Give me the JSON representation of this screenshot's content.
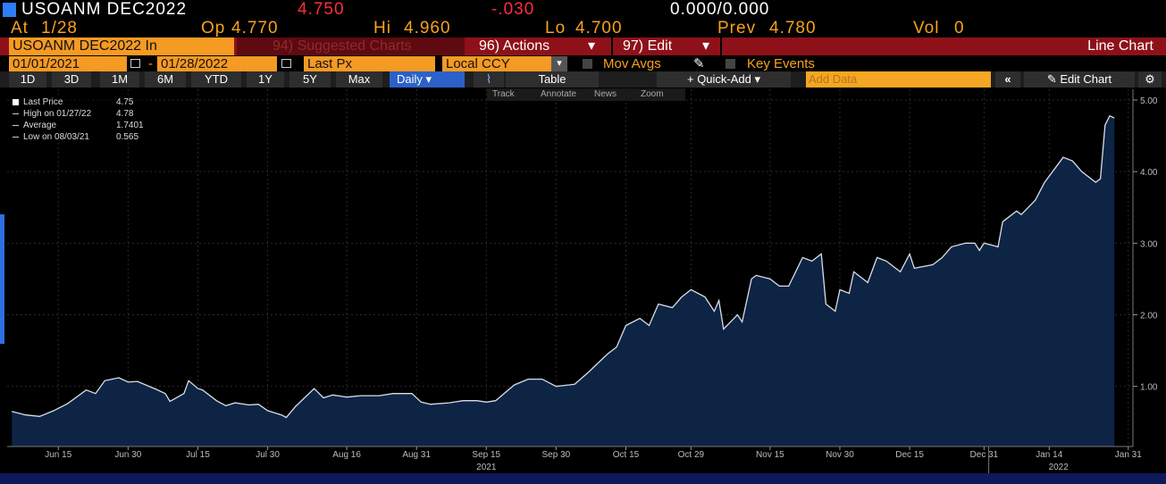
{
  "header": {
    "security": "USOANM DEC2022",
    "last": "4.750",
    "change": "-.030",
    "bid_ask": "0.000/0.000",
    "quote": [
      {
        "label": "At",
        "value": "1/28"
      },
      {
        "label": "Op",
        "value": "4.770"
      },
      {
        "label": "Hi",
        "value": "4.960"
      },
      {
        "label": "Lo",
        "value": "4.700"
      },
      {
        "label": "Prev",
        "value": "4.780"
      },
      {
        "label": "Vol",
        "value": "0"
      }
    ]
  },
  "menu": {
    "ticker_field": "USOANM DEC2022 In",
    "suggested": "94) Suggested Charts",
    "actions": "96) Actions",
    "edit": "97) Edit",
    "chart_kind": "Line Chart"
  },
  "settings": {
    "start_date": "01/01/2021",
    "end_date": "01/28/2022",
    "field": "Last Px",
    "currency": "Local CCY",
    "mov_avgs": "Mov Avgs",
    "key_events": "Key Events"
  },
  "toolbar": {
    "ranges": [
      "1D",
      "3D",
      "1M",
      "6M",
      "YTD",
      "1Y",
      "5Y",
      "Max"
    ],
    "period": "Daily",
    "table": "Table",
    "quick_add": "Quick-Add",
    "add_data": "Add Data",
    "edit_chart": "Edit Chart"
  },
  "chart_tools": [
    "Track",
    "Annotate",
    "News",
    "Zoom"
  ],
  "legend": [
    {
      "label": "Last Price",
      "value": "4.75"
    },
    {
      "label": "High on 01/27/22",
      "value": "4.78"
    },
    {
      "label": "Average",
      "value": "1.7401"
    },
    {
      "label": "Low on 08/03/21",
      "value": "0.565"
    }
  ],
  "chart_data": {
    "type": "area",
    "x": [
      "2021-06-05",
      "2021-06-08",
      "2021-06-11",
      "2021-06-14",
      "2021-06-17",
      "2021-06-21",
      "2021-06-23",
      "2021-06-25",
      "2021-06-28",
      "2021-06-30",
      "2021-07-02",
      "2021-07-06",
      "2021-07-08",
      "2021-07-09",
      "2021-07-12",
      "2021-07-13",
      "2021-07-15",
      "2021-07-16",
      "2021-07-19",
      "2021-07-21",
      "2021-07-23",
      "2021-07-26",
      "2021-07-28",
      "2021-07-30",
      "2021-08-02",
      "2021-08-03",
      "2021-08-05",
      "2021-08-09",
      "2021-08-11",
      "2021-08-13",
      "2021-08-16",
      "2021-08-19",
      "2021-08-23",
      "2021-08-26",
      "2021-08-30",
      "2021-09-01",
      "2021-09-03",
      "2021-09-07",
      "2021-09-10",
      "2021-09-13",
      "2021-09-15",
      "2021-09-17",
      "2021-09-21",
      "2021-09-24",
      "2021-09-27",
      "2021-09-30",
      "2021-10-04",
      "2021-10-07",
      "2021-10-11",
      "2021-10-13",
      "2021-10-15",
      "2021-10-18",
      "2021-10-20",
      "2021-10-22",
      "2021-10-25",
      "2021-10-27",
      "2021-10-29",
      "2021-11-01",
      "2021-11-03",
      "2021-11-04",
      "2021-11-05",
      "2021-11-08",
      "2021-11-09",
      "2021-11-11",
      "2021-11-12",
      "2021-11-15",
      "2021-11-17",
      "2021-11-19",
      "2021-11-22",
      "2021-11-24",
      "2021-11-26",
      "2021-11-27",
      "2021-11-29",
      "2021-11-30",
      "2021-12-02",
      "2021-12-03",
      "2021-12-06",
      "2021-12-08",
      "2021-12-10",
      "2021-12-13",
      "2021-12-15",
      "2021-12-16",
      "2021-12-20",
      "2021-12-22",
      "2021-12-24",
      "2021-12-27",
      "2021-12-29",
      "2021-12-30",
      "2021-12-31",
      "2022-01-03",
      "2022-01-04",
      "2022-01-07",
      "2022-01-08",
      "2022-01-11",
      "2022-01-13",
      "2022-01-17",
      "2022-01-19",
      "2022-01-21",
      "2022-01-24",
      "2022-01-25",
      "2022-01-26",
      "2022-01-27",
      "2022-01-28"
    ],
    "series": [
      {
        "name": "Last Price",
        "color": "#0e2445",
        "line_color": "#d9dee8",
        "values": [
          0.65,
          0.6,
          0.58,
          0.66,
          0.76,
          0.95,
          0.9,
          1.08,
          1.12,
          1.06,
          1.07,
          0.96,
          0.9,
          0.79,
          0.9,
          1.08,
          0.97,
          0.95,
          0.8,
          0.73,
          0.77,
          0.74,
          0.75,
          0.66,
          0.6,
          0.565,
          0.72,
          0.97,
          0.84,
          0.88,
          0.85,
          0.87,
          0.87,
          0.9,
          0.9,
          0.78,
          0.75,
          0.77,
          0.8,
          0.8,
          0.78,
          0.8,
          1.02,
          1.1,
          1.1,
          1.0,
          1.03,
          1.2,
          1.45,
          1.55,
          1.85,
          1.95,
          1.85,
          2.15,
          2.1,
          2.25,
          2.35,
          2.25,
          2.05,
          2.2,
          1.8,
          2.0,
          1.9,
          2.5,
          2.55,
          2.5,
          2.4,
          2.4,
          2.8,
          2.75,
          2.85,
          2.15,
          2.05,
          2.35,
          2.3,
          2.6,
          2.45,
          2.8,
          2.75,
          2.6,
          2.85,
          2.65,
          2.7,
          2.8,
          2.95,
          3.0,
          3.0,
          2.9,
          3.0,
          2.95,
          3.3,
          3.45,
          3.4,
          3.6,
          3.85,
          4.2,
          4.15,
          4.0,
          3.85,
          3.9,
          4.65,
          4.78,
          4.75
        ]
      }
    ],
    "xlim": [
      "2021-06-04",
      "2022-02-01"
    ],
    "xticks": [
      {
        "value": "2021-06-15",
        "label": "Jun 15"
      },
      {
        "value": "2021-06-30",
        "label": "Jun 30"
      },
      {
        "value": "2021-07-15",
        "label": "Jul 15"
      },
      {
        "value": "2021-07-30",
        "label": "Jul 30"
      },
      {
        "value": "2021-08-16",
        "label": "Aug 16"
      },
      {
        "value": "2021-08-31",
        "label": "Aug 31"
      },
      {
        "value": "2021-09-15",
        "label": "Sep 15"
      },
      {
        "value": "2021-09-30",
        "label": "Sep 30"
      },
      {
        "value": "2021-10-15",
        "label": "Oct 15"
      },
      {
        "value": "2021-10-29",
        "label": "Oct 29"
      },
      {
        "value": "2021-11-15",
        "label": "Nov 15"
      },
      {
        "value": "2021-11-30",
        "label": "Nov 30"
      },
      {
        "value": "2021-12-15",
        "label": "Dec 15"
      },
      {
        "value": "2021-12-31",
        "label": "Dec 31"
      },
      {
        "value": "2022-01-14",
        "label": "Jan 14"
      },
      {
        "value": "2022-01-31",
        "label": "Jan 31"
      }
    ],
    "year_labels": [
      {
        "value": "2021-09-15",
        "label": "2021"
      },
      {
        "value": "2022-01-16",
        "label": "2022"
      }
    ],
    "ylim": [
      0.16,
      5.15
    ],
    "yticks": [
      {
        "value": 1,
        "label": "1.00"
      },
      {
        "value": 2,
        "label": "2.00"
      },
      {
        "value": 3,
        "label": "3.00"
      },
      {
        "value": 4,
        "label": "4.00"
      },
      {
        "value": 5,
        "label": "5.00"
      }
    ],
    "grid": true
  }
}
